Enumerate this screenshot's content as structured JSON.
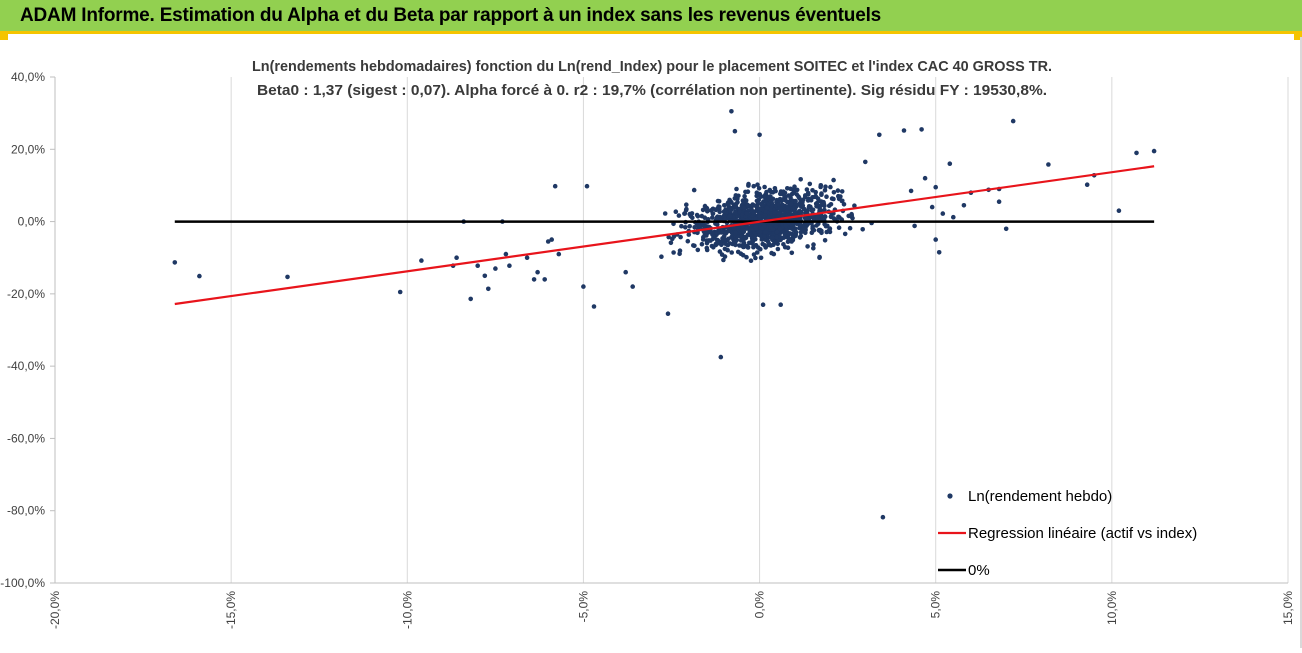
{
  "header": {
    "title": "ADAM Informe. Estimation du Alpha et du Beta par rapport à un index sans les revenus éventuels"
  },
  "colors": {
    "header_bg": "#92d050",
    "accent_border": "#f5c400",
    "points": "#1f3864",
    "regression": "#e8141b",
    "zero_line": "#000000",
    "grid": "#d9d9d9"
  },
  "chart_data": {
    "type": "scatter",
    "title_line1": "Ln(rendements hebdomadaires) fonction du Ln(rend_Index) pour le placement SOITEC et l'index CAC 40 GROSS TR.",
    "title_line2": "Beta0 : 1,37 (sigest : 0,07). Alpha forcé à 0. r2 : 19,7% (corrélation non pertinente). Sig résidu FY : 19530,8%.",
    "xlim": [
      -0.2,
      0.15
    ],
    "ylim": [
      -1.0,
      0.4
    ],
    "x_ticks": [
      -0.2,
      -0.15,
      -0.1,
      -0.05,
      0.0,
      0.05,
      0.1,
      0.15
    ],
    "x_tick_labels": [
      "-20,0%",
      "-15,0%",
      "-10,0%",
      "-5,0%",
      "0,0%",
      "5,0%",
      "10,0%",
      "15,0%"
    ],
    "y_ticks": [
      0.4,
      0.2,
      0.0,
      -0.2,
      -0.4,
      -0.6,
      -0.8,
      -1.0
    ],
    "y_tick_labels": [
      "40,0%",
      "20,0%",
      "0,0%",
      "-20,0%",
      "-40,0%",
      "-60,0%",
      "-80,0%",
      "-100,0%"
    ],
    "grid": "vertical",
    "legend_position": "bottom-right",
    "legend": [
      {
        "label": "Ln(rendement hebdo)",
        "kind": "marker"
      },
      {
        "label": "Regression linéaire (actif vs index)",
        "kind": "line-red"
      },
      {
        "label": "0%",
        "kind": "line-black"
      }
    ],
    "regression": {
      "slope": 1.37,
      "x": [
        -0.166,
        0.112
      ],
      "y": [
        -0.228,
        0.153
      ]
    },
    "zero_line": {
      "x": [
        -0.166,
        0.112
      ],
      "y": [
        0.0,
        0.0
      ]
    },
    "series": [
      {
        "kind": "scatter",
        "outliers": [
          [
            -0.166,
            -0.113
          ],
          [
            -0.159,
            -0.151
          ],
          [
            -0.134,
            -0.153
          ],
          [
            -0.102,
            -0.195
          ],
          [
            -0.096,
            -0.108
          ],
          [
            -0.087,
            -0.122
          ],
          [
            -0.086,
            -0.1
          ],
          [
            -0.084,
            0.0
          ],
          [
            -0.082,
            -0.214
          ],
          [
            -0.08,
            -0.122
          ],
          [
            -0.078,
            -0.15
          ],
          [
            -0.077,
            -0.186
          ],
          [
            -0.075,
            -0.13
          ],
          [
            -0.073,
            0.0
          ],
          [
            -0.072,
            -0.09
          ],
          [
            -0.071,
            -0.122
          ],
          [
            -0.066,
            -0.1
          ],
          [
            -0.064,
            -0.16
          ],
          [
            -0.063,
            -0.14
          ],
          [
            -0.061,
            -0.16
          ],
          [
            -0.06,
            -0.055
          ],
          [
            -0.059,
            -0.05
          ],
          [
            -0.058,
            0.098
          ],
          [
            -0.057,
            -0.09
          ],
          [
            -0.049,
            0.098
          ],
          [
            -0.05,
            -0.18
          ],
          [
            -0.047,
            -0.235
          ],
          [
            -0.026,
            -0.255
          ],
          [
            -0.011,
            -0.375
          ],
          [
            -0.008,
            0.305
          ],
          [
            -0.007,
            0.25
          ],
          [
            0.0,
            0.24
          ],
          [
            0.001,
            -0.23
          ],
          [
            0.006,
            -0.23
          ],
          [
            0.017,
            -0.1
          ],
          [
            0.03,
            0.165
          ],
          [
            0.034,
            0.24
          ],
          [
            0.035,
            -0.818
          ],
          [
            0.041,
            0.252
          ],
          [
            0.046,
            0.255
          ],
          [
            0.049,
            0.04
          ],
          [
            0.05,
            -0.05
          ],
          [
            0.051,
            -0.085
          ],
          [
            0.052,
            0.022
          ],
          [
            0.054,
            0.16
          ],
          [
            0.055,
            0.012
          ],
          [
            0.058,
            0.045
          ],
          [
            0.06,
            0.08
          ],
          [
            0.065,
            0.088
          ],
          [
            0.068,
            0.09
          ],
          [
            0.068,
            0.055
          ],
          [
            0.07,
            -0.02
          ],
          [
            0.072,
            0.278
          ],
          [
            0.082,
            0.158
          ],
          [
            0.093,
            0.102
          ],
          [
            0.095,
            0.128
          ],
          [
            0.102,
            0.03
          ],
          [
            0.107,
            0.19
          ],
          [
            0.112,
            0.195
          ],
          [
            0.05,
            0.095
          ],
          [
            0.047,
            0.12
          ],
          [
            0.044,
            -0.012
          ],
          [
            0.043,
            0.085
          ],
          [
            -0.038,
            -0.14
          ],
          [
            -0.036,
            -0.18
          ]
        ]
      }
    ]
  }
}
